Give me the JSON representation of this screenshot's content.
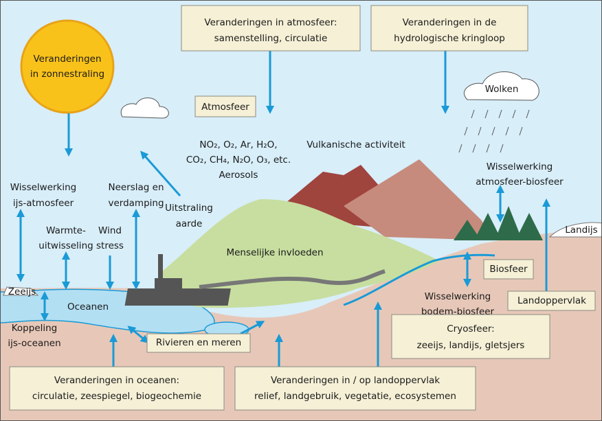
{
  "labels": {
    "atmosphere_changes": [
      "Veranderingen in atmosfeer:",
      "samenstelling, circulatie"
    ],
    "hydrology_changes": [
      "Veranderingen in de",
      "hydrologische kringloop"
    ],
    "solar_changes": [
      "Veranderingen",
      "in zonnestraling"
    ],
    "atmosphere": [
      "Atmosfeer"
    ],
    "clouds": [
      "Wolken"
    ],
    "gases": [
      "NO₂, O₂, Ar, H₂O,",
      "CO₂, CH₄, N₂O, O₃, etc.",
      "Aerosols"
    ],
    "volcanic": [
      "Vulkanische activiteit"
    ],
    "atmosphere_biosphere": [
      "Wisselwerking",
      "atmosfeer-biosfeer"
    ],
    "ice_atmosphere": [
      "Wisselwerking",
      "ijs-atmosfeer"
    ],
    "precipitation": [
      "Neerslag en",
      "verdamping"
    ],
    "radiation": [
      "Uitstraling",
      "aarde"
    ],
    "heat_exchange": [
      "Warmte-",
      "uitwisseling"
    ],
    "wind_stress": [
      "Wind",
      "stress"
    ],
    "human": [
      "Menselijke invloeden"
    ],
    "land_ice": [
      "Landijs"
    ],
    "biosphere": [
      "Biosfeer"
    ],
    "sea_ice": [
      "Zeeijs"
    ],
    "oceans": [
      "Oceanen"
    ],
    "ice_ocean": [
      "Koppeling",
      "ijs-oceanen"
    ],
    "soil_biosphere": [
      "Wisselwerking",
      "bodem-biosfeer"
    ],
    "land_surface": [
      "Landoppervlak"
    ],
    "rivers": [
      "Rivieren en meren"
    ],
    "cryosphere": [
      "Cryosfeer:",
      "zeeijs, landijs, gletsjers"
    ],
    "ocean_changes": [
      "Veranderingen in oceanen:",
      "circulatie, zeespiegel, biogeochemie"
    ],
    "land_changes": [
      "Veranderingen in / op landoppervlak",
      "relief, landgebruik, vegetatie, ecosystemen"
    ]
  }
}
